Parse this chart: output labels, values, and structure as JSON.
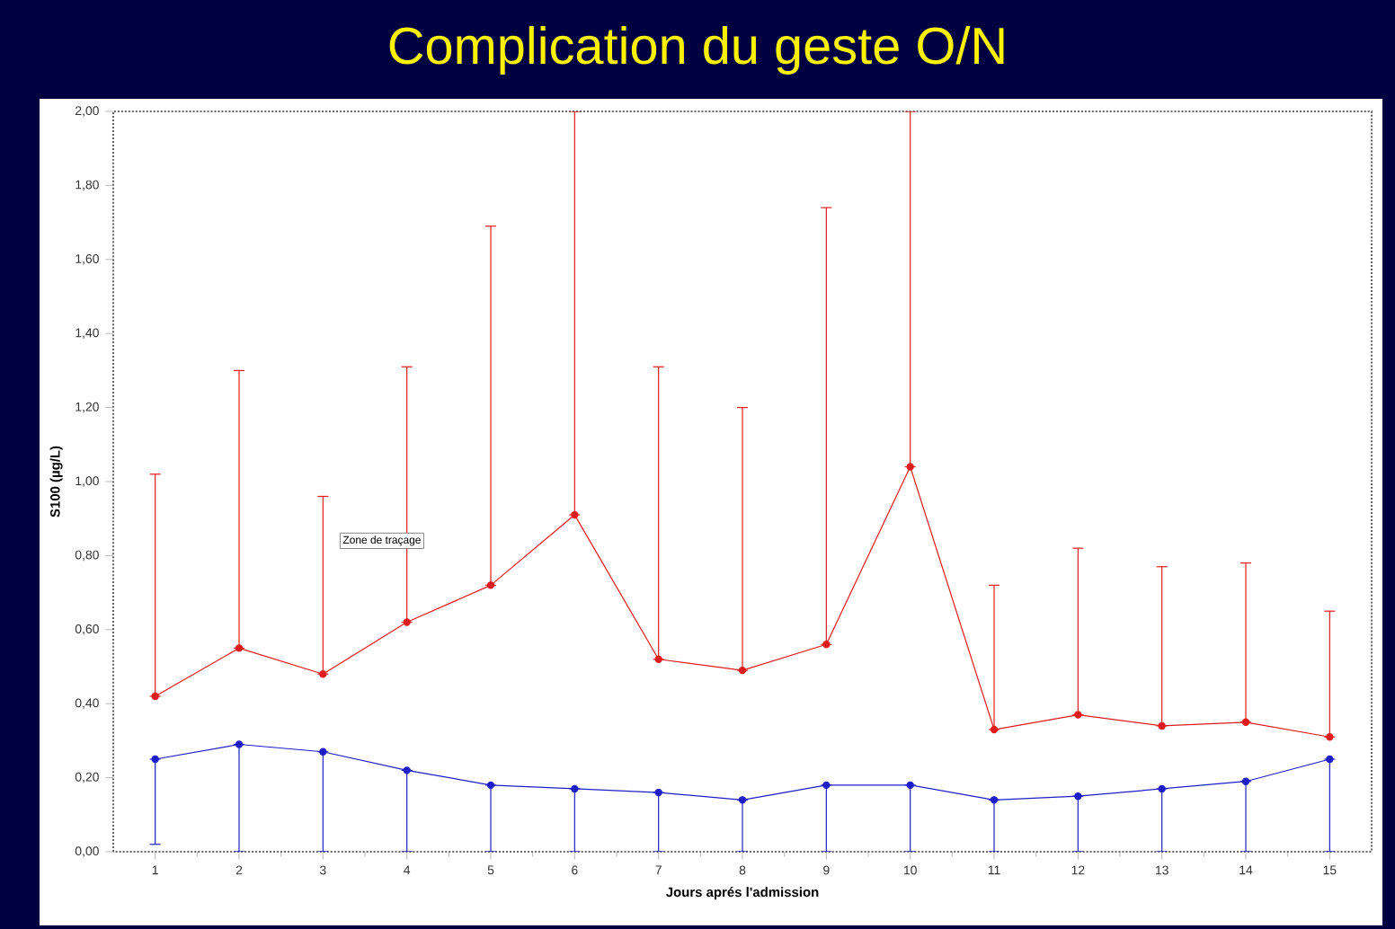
{
  "chart_data": {
    "type": "line",
    "title": "Complication du geste O/N",
    "xlabel": "Jours aprés l'admission",
    "ylabel": "S100 (µg/L)",
    "categories": [
      "1",
      "2",
      "3",
      "4",
      "5",
      "6",
      "7",
      "8",
      "9",
      "10",
      "11",
      "12",
      "13",
      "14",
      "15"
    ],
    "series": [
      {
        "color": "#e01b1b",
        "values": [
          0.42,
          0.55,
          0.48,
          0.62,
          0.72,
          0.91,
          0.52,
          0.49,
          0.56,
          1.04,
          0.33,
          0.37,
          0.34,
          0.35,
          0.31
        ],
        "errors": [
          [
            0.42,
            1.02
          ],
          [
            0.55,
            1.3
          ],
          [
            0.48,
            0.96
          ],
          [
            0.62,
            1.31
          ],
          [
            0.72,
            1.69
          ],
          [
            0.91,
            2.0
          ],
          [
            0.52,
            1.31
          ],
          [
            0.49,
            1.2
          ],
          [
            0.56,
            1.74
          ],
          [
            1.04,
            2.0
          ],
          [
            0.33,
            0.72
          ],
          [
            0.37,
            0.82
          ],
          [
            0.34,
            0.77
          ],
          [
            0.35,
            0.78
          ],
          [
            0.31,
            0.65
          ]
        ]
      },
      {
        "color": "#1e1ec8",
        "values": [
          0.25,
          0.29,
          0.27,
          0.22,
          0.18,
          0.17,
          0.16,
          0.14,
          0.18,
          0.18,
          0.14,
          0.15,
          0.17,
          0.19,
          0.25
        ],
        "errors": [
          [
            0.02,
            0.25
          ],
          [
            0,
            0.29
          ],
          [
            0,
            0.27
          ],
          [
            0,
            0.22
          ],
          [
            0,
            0.18
          ],
          [
            0,
            0.17
          ],
          [
            0,
            0.16
          ],
          [
            0,
            0.14
          ],
          [
            0,
            0.18
          ],
          [
            0,
            0.18
          ],
          [
            0,
            0.14
          ],
          [
            0,
            0.15
          ],
          [
            0,
            0.17
          ],
          [
            0,
            0.19
          ],
          [
            0,
            0.25
          ]
        ]
      }
    ],
    "ylim": [
      0,
      2
    ],
    "yticks": [
      {
        "value": 0,
        "label": "0,00"
      },
      {
        "value": 0.2,
        "label": "0,20"
      },
      {
        "value": 0.4,
        "label": "0,40"
      },
      {
        "value": 0.6,
        "label": "0,60"
      },
      {
        "value": 0.8,
        "label": "0,80"
      },
      {
        "value": 1.0,
        "label": "1,00"
      },
      {
        "value": 1.2,
        "label": "1,20"
      },
      {
        "value": 1.4,
        "label": "1,40"
      },
      {
        "value": 1.6,
        "label": "1,60"
      },
      {
        "value": 1.8,
        "label": "1,80"
      },
      {
        "value": 2.0,
        "label": "2,00"
      }
    ],
    "marker": "circle",
    "line_style": "solid",
    "annotations": [
      "Zone de traçage"
    ]
  }
}
